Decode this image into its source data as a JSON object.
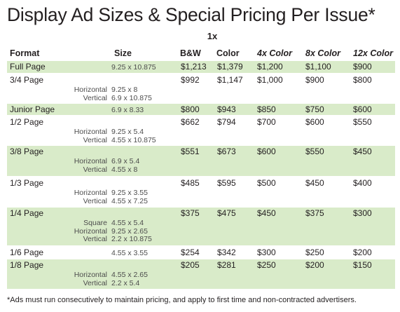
{
  "title": "Display Ad Sizes & Special Pricing Per Issue*",
  "group_header": "1x",
  "headers": {
    "format": "Format",
    "size": "Size",
    "bw": "B&W",
    "color": "Color",
    "c4": "4x Color",
    "c8": "8x Color",
    "c12": "12x Color"
  },
  "rows": [
    {
      "format": "Full Page",
      "subs": [
        ""
      ],
      "sizes": [
        "9.25 x 10.875"
      ],
      "bw": "$1,213",
      "color": "$1,379",
      "c4": "$1,200",
      "c8": "$1,100",
      "c12": "$900"
    },
    {
      "format": "3/4 Page",
      "subs": [
        "Horizontal",
        "Vertical"
      ],
      "sizes": [
        "9.25 x 8",
        "6.9 x 10.875"
      ],
      "bw": "$992",
      "color": "$1,147",
      "c4": "$1,000",
      "c8": "$900",
      "c12": "$800"
    },
    {
      "format": "Junior Page",
      "subs": [
        ""
      ],
      "sizes": [
        "6.9 x 8.33"
      ],
      "bw": "$800",
      "color": "$943",
      "c4": "$850",
      "c8": "$750",
      "c12": "$600"
    },
    {
      "format": "1/2 Page",
      "subs": [
        "Horizontal",
        "Vertical"
      ],
      "sizes": [
        "9.25 x 5.4",
        "4.55 x 10.875"
      ],
      "bw": "$662",
      "color": "$794",
      "c4": "$700",
      "c8": "$600",
      "c12": "$550"
    },
    {
      "format": "3/8 Page",
      "subs": [
        "Horizontal",
        "Vertical"
      ],
      "sizes": [
        "6.9 x 5.4",
        "4.55 x 8"
      ],
      "bw": "$551",
      "color": "$673",
      "c4": "$600",
      "c8": "$550",
      "c12": "$450"
    },
    {
      "format": "1/3 Page",
      "subs": [
        "Horizontal",
        "Vertical"
      ],
      "sizes": [
        "9.25 x 3.55",
        "4.55 x 7.25"
      ],
      "bw": "$485",
      "color": "$595",
      "c4": "$500",
      "c8": "$450",
      "c12": "$400"
    },
    {
      "format": "1/4 Page",
      "subs": [
        "Square",
        "Horizontal",
        "Vertical"
      ],
      "sizes": [
        "4.55 x 5.4",
        "9.25 x 2.65",
        "2.2 x 10.875"
      ],
      "bw": "$375",
      "color": "$475",
      "c4": "$450",
      "c8": "$375",
      "c12": "$300"
    },
    {
      "format": "1/6 Page",
      "subs": [
        ""
      ],
      "sizes": [
        "4.55 x 3.55"
      ],
      "bw": "$254",
      "color": "$342",
      "c4": "$300",
      "c8": "$250",
      "c12": "$200"
    },
    {
      "format": "1/8 Page",
      "subs": [
        "Horizontal",
        "Vertical"
      ],
      "sizes": [
        "4.55 x 2.65",
        "2.2 x 5.4"
      ],
      "bw": "$205",
      "color": "$281",
      "c4": "$250",
      "c8": "$200",
      "c12": "$150"
    }
  ],
  "footnote": "*Ads must run consecutively to maintain pricing, and apply to first time and non-contracted advertisers.",
  "colors": {
    "band": "#d9ebc9",
    "text": "#231f20"
  }
}
